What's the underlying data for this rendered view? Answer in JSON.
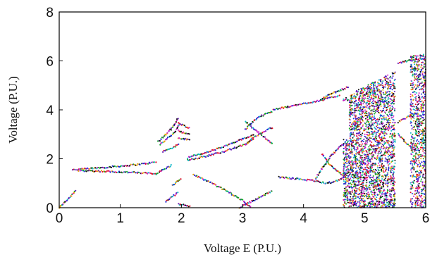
{
  "chart_data": {
    "type": "scatter",
    "title": "",
    "xlabel": "Voltage E (P.U.)",
    "ylabel": "Voltage  (P.U.)",
    "xlim": [
      0,
      6
    ],
    "ylim": [
      0,
      8
    ],
    "x_ticks": [
      "0",
      "1",
      "2",
      "3",
      "4",
      "5",
      "6"
    ],
    "y_ticks": [
      "0",
      "2",
      "4",
      "6",
      "8"
    ],
    "grid": false,
    "legend": "none",
    "point_colors": [
      "#e0102c",
      "#1b2cd9",
      "#17a62a",
      "#d020c8",
      "#14b8c8",
      "#e8a10c",
      "#6b1fb8",
      "#111111"
    ],
    "branches": [
      {
        "x": [
          0.0,
          0.1,
          0.2,
          0.28
        ],
        "y": [
          0.0,
          0.25,
          0.5,
          0.75
        ]
      },
      {
        "x": [
          0.22,
          0.5,
          0.8,
          1.1,
          1.4,
          1.6
        ],
        "y": [
          1.55,
          1.6,
          1.66,
          1.72,
          1.8,
          1.87
        ]
      },
      {
        "x": [
          0.3,
          0.6,
          0.9,
          1.2,
          1.5,
          1.6
        ],
        "y": [
          1.52,
          1.5,
          1.47,
          1.44,
          1.4,
          1.38
        ]
      },
      {
        "x": [
          1.6,
          1.7,
          1.85
        ],
        "y": [
          1.4,
          1.55,
          1.75
        ]
      },
      {
        "x": [
          1.62,
          1.75,
          1.88,
          1.95
        ],
        "y": [
          2.7,
          3.0,
          3.35,
          3.7
        ]
      },
      {
        "x": [
          1.65,
          1.78,
          1.9,
          1.97
        ],
        "y": [
          2.6,
          2.85,
          3.1,
          3.45
        ]
      },
      {
        "x": [
          1.7,
          1.85,
          1.97
        ],
        "y": [
          2.3,
          2.45,
          2.6
        ]
      },
      {
        "x": [
          1.95,
          2.05,
          2.15
        ],
        "y": [
          3.45,
          3.35,
          3.25
        ]
      },
      {
        "x": [
          1.95,
          2.05,
          2.15
        ],
        "y": [
          3.15,
          3.05,
          3.0
        ]
      },
      {
        "x": [
          1.95,
          2.05,
          2.15
        ],
        "y": [
          2.85,
          2.8,
          2.78
        ]
      },
      {
        "x": [
          1.75,
          1.85,
          1.95
        ],
        "y": [
          0.25,
          0.45,
          0.62
        ]
      },
      {
        "x": [
          1.95,
          2.05,
          2.15
        ],
        "y": [
          0.15,
          0.1,
          0.05
        ]
      },
      {
        "x": [
          1.85,
          1.92,
          2.0
        ],
        "y": [
          0.9,
          1.05,
          1.2
        ]
      },
      {
        "x": [
          2.1,
          2.4,
          2.7,
          3.0,
          3.2
        ],
        "y": [
          2.05,
          2.25,
          2.5,
          2.8,
          3.0
        ]
      },
      {
        "x": [
          2.1,
          2.4,
          2.7,
          3.0,
          3.2
        ],
        "y": [
          1.95,
          2.1,
          2.3,
          2.55,
          2.8
        ]
      },
      {
        "x": [
          2.2,
          2.5,
          2.8,
          3.0,
          3.15
        ],
        "y": [
          1.35,
          1.0,
          0.6,
          0.3,
          0.0
        ]
      },
      {
        "x": [
          2.95,
          3.1,
          3.3,
          3.5
        ],
        "y": [
          0.0,
          0.2,
          0.45,
          0.7
        ]
      },
      {
        "x": [
          3.05,
          3.2,
          3.35,
          3.5
        ],
        "y": [
          3.2,
          3.6,
          3.8,
          3.95
        ]
      },
      {
        "x": [
          3.05,
          3.2,
          3.35,
          3.5
        ],
        "y": [
          2.6,
          2.9,
          3.1,
          3.3
        ]
      },
      {
        "x": [
          3.05,
          3.2,
          3.35,
          3.5
        ],
        "y": [
          3.5,
          3.2,
          2.9,
          2.6
        ]
      },
      {
        "x": [
          3.5,
          3.8,
          4.0,
          4.3,
          4.6
        ],
        "y": [
          4.0,
          4.15,
          4.25,
          4.4,
          4.6
        ]
      },
      {
        "x": [
          4.3,
          4.45,
          4.6,
          4.75
        ],
        "y": [
          4.45,
          4.65,
          4.8,
          4.95
        ]
      },
      {
        "x": [
          3.6,
          3.8,
          4.0,
          4.2
        ],
        "y": [
          1.25,
          1.2,
          1.15,
          1.1
        ]
      },
      {
        "x": [
          4.2,
          4.3,
          4.45,
          4.6,
          4.7
        ],
        "y": [
          1.2,
          1.6,
          2.1,
          2.5,
          2.7
        ]
      },
      {
        "x": [
          4.2,
          4.35,
          4.5,
          4.65
        ],
        "y": [
          1.1,
          1.0,
          1.05,
          1.2
        ]
      },
      {
        "x": [
          4.3,
          4.45,
          4.6,
          4.7
        ],
        "y": [
          2.2,
          1.7,
          1.4,
          1.2
        ]
      },
      {
        "x": [
          5.55,
          5.7,
          5.85,
          6.0
        ],
        "y": [
          5.9,
          6.0,
          6.05,
          6.1
        ]
      },
      {
        "x": [
          5.55,
          5.7,
          5.85
        ],
        "y": [
          3.0,
          2.6,
          2.3
        ]
      },
      {
        "x": [
          5.55,
          5.7,
          5.85
        ],
        "y": [
          3.5,
          3.7,
          3.9
        ]
      }
    ],
    "chaotic_bands": [
      {
        "x_range": [
          4.65,
          5.5
        ],
        "y_range_start": [
          0.0,
          4.5
        ],
        "y_range_end": [
          0.0,
          5.6
        ],
        "gaps": [
          {
            "x": [
              4.65,
              4.75
            ],
            "y": [
              2.8,
              4.3
            ]
          }
        ]
      },
      {
        "x_range": [
          5.75,
          6.0
        ],
        "y_range_start": [
          0.0,
          6.2
        ],
        "y_range_end": [
          0.0,
          6.3
        ],
        "gaps": []
      }
    ]
  }
}
